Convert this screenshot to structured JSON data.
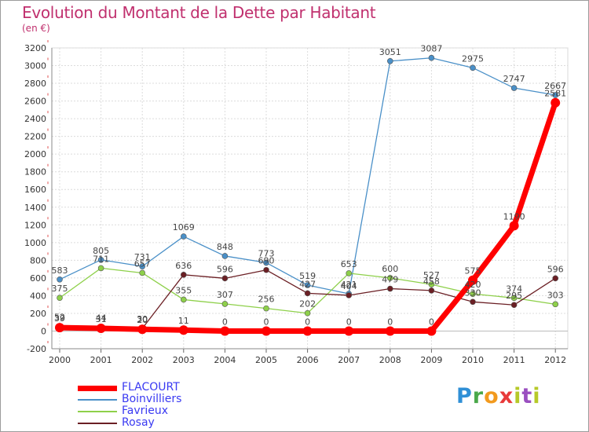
{
  "title": "Evolution du Montant de la Dette par Habitant",
  "unit_label": "(en €)",
  "logo_text": "Proxiti",
  "chart_data": {
    "type": "line",
    "title": "Evolution du Montant de la Dette par Habitant",
    "ylabel": "(en €)",
    "xlabel": "",
    "x": [
      2000,
      2001,
      2002,
      2003,
      2004,
      2005,
      2006,
      2007,
      2008,
      2009,
      2010,
      2011,
      2012
    ],
    "ylim": [
      -200,
      3200
    ],
    "yticks": [
      -200,
      0,
      200,
      400,
      600,
      800,
      1000,
      1200,
      1400,
      1600,
      1800,
      2000,
      2200,
      2400,
      2600,
      2800,
      3000,
      3200
    ],
    "grid": true,
    "legend_position": "bottom-left",
    "series": [
      {
        "name": "FLACOURT",
        "color": "#ff0000",
        "values": [
          39,
          31,
          20,
          11,
          0,
          0,
          0,
          0,
          0,
          0,
          575,
          1190,
          2581
        ]
      },
      {
        "name": "Boinvilliers",
        "color": "#4a90c8",
        "values": [
          583,
          805,
          731,
          1069,
          848,
          773,
          519,
          421,
          3051,
          3087,
          2975,
          2747,
          2667
        ]
      },
      {
        "name": "Favrieux",
        "color": "#8ed04a",
        "values": [
          375,
          711,
          657,
          355,
          307,
          256,
          202,
          653,
          600,
          527,
          420,
          374,
          303
        ]
      },
      {
        "name": "Rosay",
        "color": "#6b1f24",
        "values": [
          52,
          44,
          30,
          636,
          596,
          690,
          427,
          404,
          479,
          458,
          330,
          295,
          596
        ]
      }
    ]
  }
}
